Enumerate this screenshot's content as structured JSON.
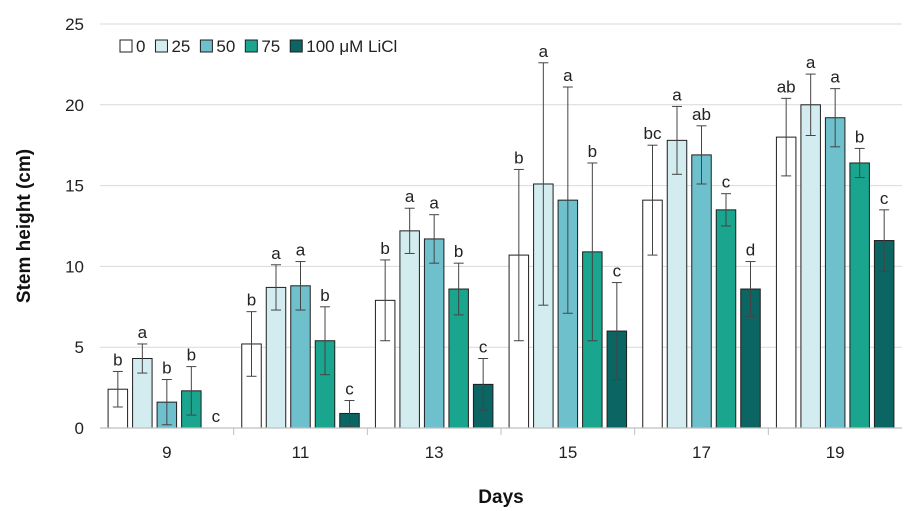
{
  "chart_data": {
    "type": "bar",
    "title": "",
    "xlabel": "Days",
    "ylabel": "Stem height (cm)",
    "ylim": [
      0,
      25
    ],
    "yticks": [
      0,
      5,
      10,
      15,
      20,
      25
    ],
    "grid": true,
    "legend_position": "top-left",
    "categories": [
      "9",
      "11",
      "13",
      "15",
      "17",
      "19"
    ],
    "series": [
      {
        "name": "0",
        "color": "#ffffff",
        "values": [
          2.4,
          5.2,
          7.9,
          10.7,
          14.1,
          18.0
        ],
        "errors": [
          1.1,
          2.0,
          2.5,
          5.3,
          3.4,
          2.4
        ],
        "letters": [
          "b",
          "b",
          "b",
          "b",
          "bc",
          "ab"
        ]
      },
      {
        "name": "25",
        "color": "#d3ecef",
        "values": [
          4.3,
          8.7,
          12.2,
          15.1,
          17.8,
          20.0
        ],
        "errors": [
          0.9,
          1.4,
          1.4,
          7.5,
          2.1,
          1.9
        ],
        "letters": [
          "a",
          "a",
          "a",
          "a",
          "a",
          "a"
        ]
      },
      {
        "name": "50",
        "color": "#6ec0cc",
        "values": [
          1.6,
          8.8,
          11.7,
          14.1,
          16.9,
          19.2
        ],
        "errors": [
          1.4,
          1.5,
          1.5,
          7.0,
          1.8,
          1.8
        ],
        "letters": [
          "b",
          "a",
          "a",
          "a",
          "ab",
          "a"
        ]
      },
      {
        "name": "75",
        "color": "#1aa58e",
        "values": [
          2.3,
          5.4,
          8.6,
          10.9,
          13.5,
          16.4
        ],
        "errors": [
          1.5,
          2.1,
          1.6,
          5.5,
          1.0,
          0.9
        ],
        "letters": [
          "b",
          "b",
          "b",
          "b",
          "c",
          "b"
        ]
      },
      {
        "name": "100 μM LiCl",
        "color": "#0a6563",
        "values": [
          0,
          0.9,
          2.7,
          6.0,
          8.6,
          11.6
        ],
        "errors": [
          0,
          0.8,
          1.6,
          3.0,
          1.7,
          1.9
        ],
        "letters": [
          "c",
          "c",
          "c",
          "c",
          "d",
          "c"
        ]
      }
    ]
  }
}
